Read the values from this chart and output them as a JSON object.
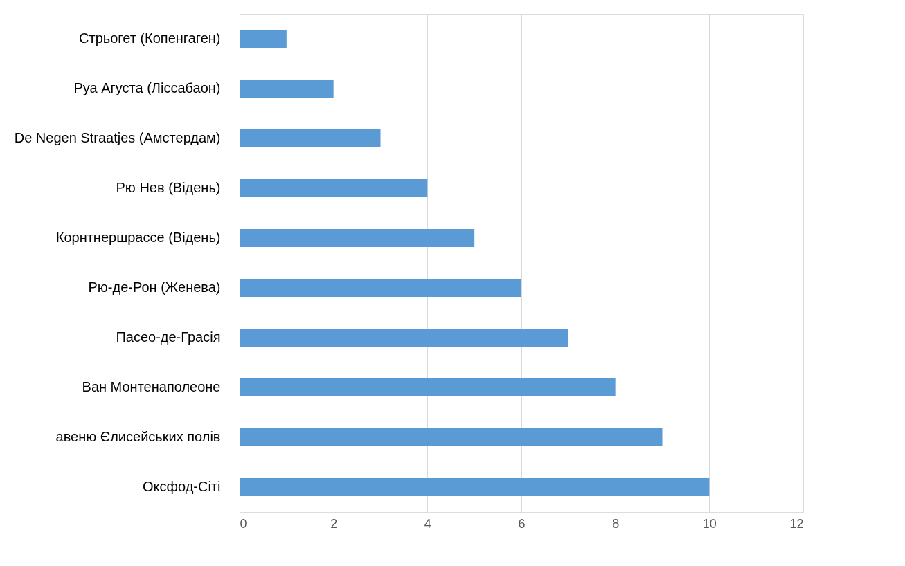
{
  "chart_data": {
    "type": "bar",
    "orientation": "horizontal",
    "categories": [
      "Стрьогет (Копенгаген)",
      "Руа Агуста (Ліссабаон)",
      "De Negen Straatjes (Амстердам)",
      "Рю Нев (Відень)",
      "Корнтнершрассе (Відень)",
      "Рю-де-Рон (Женева)",
      "Пасео-де-Грасія",
      "Ван Монтенаполеоне",
      "авеню Єлисейських полів",
      "Оксфод-Сіті"
    ],
    "series": [
      {
        "color": "#5b9bd5",
        "values": [
          1,
          2,
          3,
          4,
          5,
          6,
          7,
          8,
          9,
          10
        ]
      }
    ],
    "xlim": [
      0,
      12
    ],
    "xticks": [
      0,
      2,
      4,
      6,
      8,
      10,
      12
    ],
    "grid": "x",
    "legend": false
  }
}
